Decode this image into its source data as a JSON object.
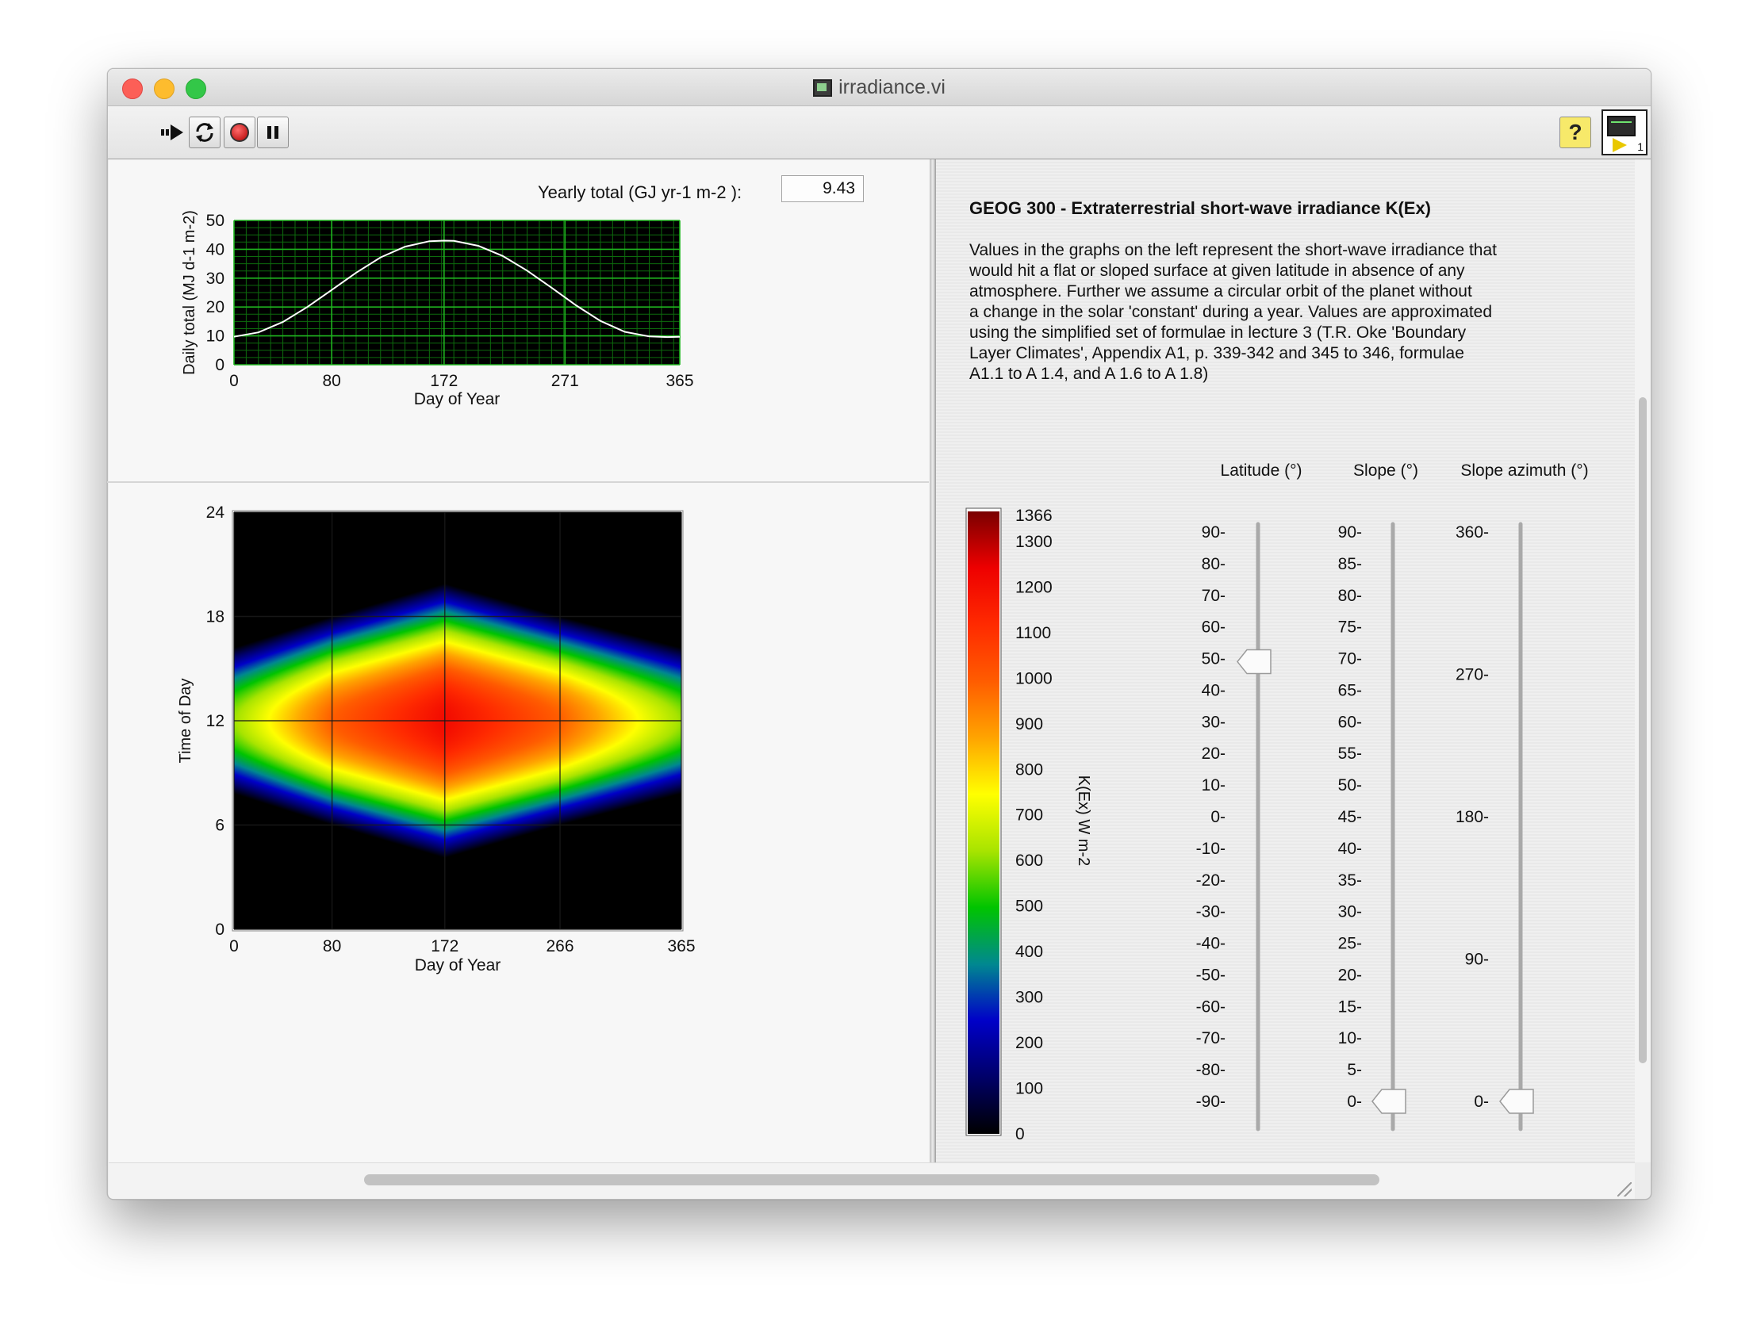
{
  "window": {
    "title": "irradiance.vi"
  },
  "toolbar": {
    "run_icon": "run-arrow-icon",
    "run_continuously_icon": "run-continuously-icon",
    "abort_icon": "abort-stop-icon",
    "pause_icon": "pause-icon",
    "help_label": "?",
    "vi_icon_number": "1"
  },
  "yearly_total": {
    "label": "Yearly total (GJ yr-1 m-2 ):",
    "value": "9.43"
  },
  "description": {
    "header": "GEOG 300 - Extraterrestrial short-wave irradiance K(Ex)",
    "lines": [
      "Values in the graphs on the left represent the short-wave irradiance that",
      "would hit a flat or sloped surface at given latitude in absence of any",
      "atmosphere. Further we assume a circular orbit of the planet without",
      "a change in the solar 'constant' during a year. Values are approximated",
      "using the simplified set of formulae in lecture 3 (T.R. Oke 'Boundary",
      "Layer Climates', Appendix A1, p. 339-342 and 345 to 346, formulae",
      "A1.1 to A 1.4, and A 1.6 to A 1.8)"
    ]
  },
  "chart_data": [
    {
      "type": "line",
      "title": "",
      "xlabel": "Day of Year",
      "ylabel": "Daily total (MJ d-1 m-2)",
      "xlim": [
        0,
        365
      ],
      "ylim": [
        0,
        50
      ],
      "x_ticks": [
        "0",
        "80",
        "172",
        "271",
        "365"
      ],
      "y_ticks": [
        "0",
        "10",
        "20",
        "30",
        "40",
        "50"
      ],
      "grid": true,
      "series": [
        {
          "x": [
            0,
            20,
            40,
            60,
            80,
            100,
            120,
            140,
            160,
            172,
            180,
            200,
            220,
            240,
            260,
            280,
            300,
            320,
            340,
            355,
            365
          ],
          "y": [
            9.7,
            11.2,
            14.8,
            20.0,
            25.9,
            31.9,
            37.2,
            40.9,
            42.8,
            43.0,
            42.9,
            41.2,
            37.7,
            32.6,
            26.7,
            20.6,
            15.2,
            11.4,
            9.8,
            9.6,
            9.7
          ]
        }
      ]
    },
    {
      "type": "heatmap",
      "title": "",
      "xlabel": "Day of Year",
      "ylabel": "Time of Day",
      "xlim": [
        0,
        365
      ],
      "ylim": [
        0,
        24
      ],
      "x_ticks": [
        "0",
        "80",
        "172",
        "266",
        "365"
      ],
      "y_ticks": [
        "0",
        "6",
        "12",
        "18",
        "24"
      ],
      "grid": true,
      "model": {
        "description": "Irradiance centered at 12:00; half-day length (hours) and peak value vary by day",
        "halfday_hours_by_day": {
          "day": [
            0,
            80,
            172,
            266,
            365
          ],
          "hours": [
            4.2,
            6.0,
            7.9,
            6.0,
            4.2
          ]
        },
        "peak_wm2_by_day": {
          "day": [
            0,
            80,
            172,
            266,
            365
          ],
          "value": [
            610,
            990,
            1210,
            990,
            610
          ]
        }
      },
      "colorbar": {
        "label": "K(Ex) W m-2",
        "min": 0,
        "max": 1366,
        "tick_labels": [
          "1366",
          "1300",
          "1200",
          "1100",
          "1000",
          "900",
          "800",
          "700",
          "600",
          "500",
          "400",
          "300",
          "200",
          "100",
          "0"
        ],
        "tick_values": [
          1366,
          1300,
          1200,
          1100,
          1000,
          900,
          800,
          700,
          600,
          500,
          400,
          300,
          200,
          100,
          0
        ],
        "colors": [
          "#000000",
          "#000068",
          "#0000c8",
          "#008890",
          "#00c400",
          "#a8e400",
          "#ffff00",
          "#ffa400",
          "#ff5c00",
          "#ff2a00",
          "#ee0000",
          "#7a0000"
        ]
      }
    }
  ],
  "controls": {
    "latitude": {
      "label": "Latitude (°)",
      "ticks": [
        "90-",
        "80-",
        "70-",
        "60-",
        "50-",
        "40-",
        "30-",
        "20-",
        "10-",
        "0-",
        "-10-",
        "-20-",
        "-30-",
        "-40-",
        "-50-",
        "-60-",
        "-70-",
        "-80-",
        "-90-"
      ],
      "min": -90,
      "max": 90,
      "value": 49
    },
    "slope": {
      "label": "Slope (°)",
      "ticks": [
        "90-",
        "85-",
        "80-",
        "75-",
        "70-",
        "65-",
        "60-",
        "55-",
        "50-",
        "45-",
        "40-",
        "35-",
        "30-",
        "25-",
        "20-",
        "15-",
        "10-",
        "5-",
        "0-"
      ],
      "min": 0,
      "max": 90,
      "value": 0
    },
    "slope_azimuth": {
      "label": "Slope azimuth (°)",
      "ticks": [
        "360-",
        "270-",
        "180-",
        "90-",
        "0-"
      ],
      "tick_values": [
        360,
        270,
        180,
        90,
        0
      ],
      "min": 0,
      "max": 360,
      "value": 0
    }
  }
}
